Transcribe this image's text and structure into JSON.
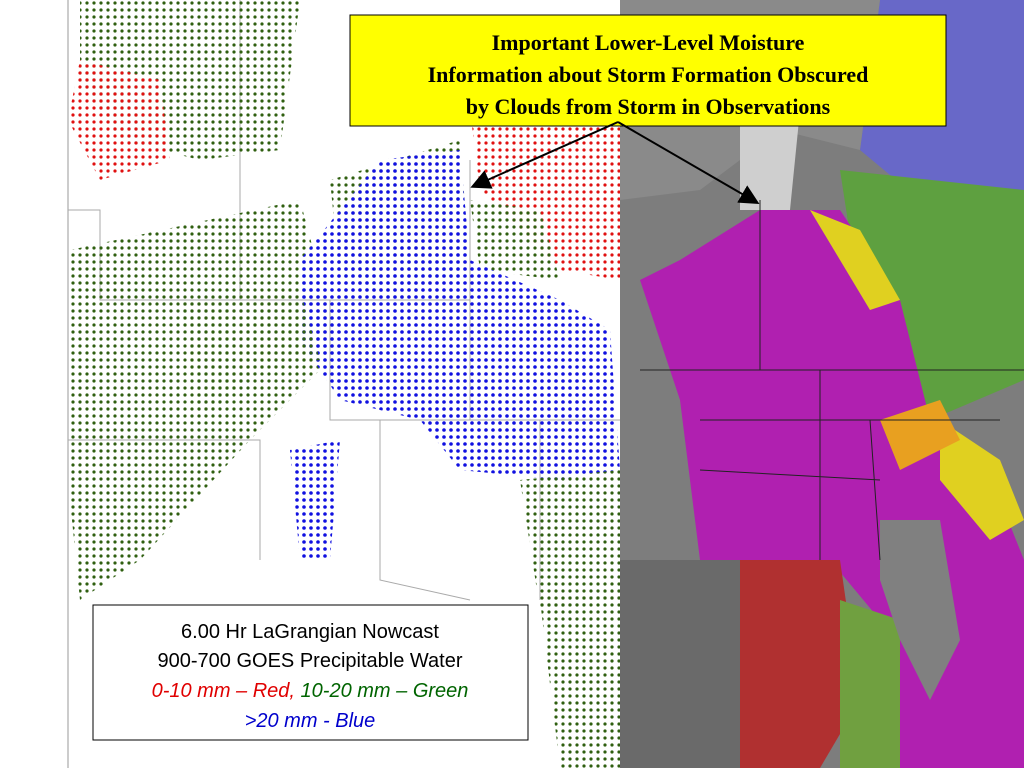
{
  "callout": {
    "lines": [
      "Important Lower-Level Moisture",
      "Information about Storm Formation Obscured",
      "by Clouds from Storm in Observations"
    ]
  },
  "legend": {
    "title": "6.00 Hr LaGrangian Nowcast",
    "subtitle": "900-700 GOES Precipitable Water",
    "red": "0-10 mm – Red,",
    "green": "10-20 mm – Green",
    "blue": ">20 mm - Blue"
  }
}
